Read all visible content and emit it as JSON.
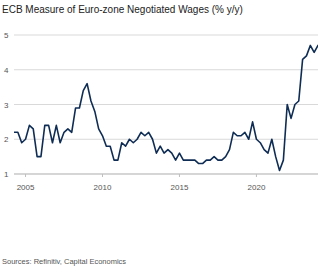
{
  "chart_data": {
    "type": "line",
    "title": "ECB Measure of Euro-zone Negotiated Wages (% y/y)",
    "source": "Sources: Refinitiv, Capital Economics",
    "x": [
      2004.25,
      2004.5,
      2004.75,
      2005,
      2005.25,
      2005.5,
      2005.75,
      2006,
      2006.25,
      2006.5,
      2006.75,
      2007,
      2007.25,
      2007.5,
      2007.75,
      2008,
      2008.25,
      2008.5,
      2008.75,
      2009,
      2009.25,
      2009.5,
      2009.75,
      2010,
      2010.25,
      2010.5,
      2010.75,
      2011,
      2011.25,
      2011.5,
      2011.75,
      2012,
      2012.25,
      2012.5,
      2012.75,
      2013,
      2013.25,
      2013.5,
      2013.75,
      2014,
      2014.25,
      2014.5,
      2014.75,
      2015,
      2015.25,
      2015.5,
      2015.75,
      2016,
      2016.25,
      2016.5,
      2016.75,
      2017,
      2017.25,
      2017.5,
      2017.75,
      2018,
      2018.25,
      2018.5,
      2018.75,
      2019,
      2019.25,
      2019.5,
      2019.75,
      2020,
      2020.25,
      2020.5,
      2020.75,
      2021,
      2021.25,
      2021.5,
      2021.75,
      2022,
      2022.25,
      2022.5,
      2022.75,
      2023,
      2023.25,
      2023.5,
      2023.75,
      2024
    ],
    "values": [
      2.2,
      2.2,
      1.9,
      2.0,
      2.4,
      2.3,
      1.5,
      1.5,
      2.4,
      2.4,
      1.9,
      2.4,
      1.9,
      2.2,
      2.3,
      2.2,
      2.9,
      2.9,
      3.4,
      3.6,
      3.1,
      2.8,
      2.3,
      2.1,
      1.8,
      1.8,
      1.4,
      1.4,
      1.9,
      1.8,
      2.0,
      1.9,
      2.0,
      2.2,
      2.1,
      2.2,
      2.0,
      1.6,
      1.8,
      1.6,
      1.7,
      1.6,
      1.4,
      1.6,
      1.4,
      1.4,
      1.4,
      1.4,
      1.3,
      1.3,
      1.4,
      1.4,
      1.5,
      1.4,
      1.4,
      1.5,
      1.7,
      2.2,
      2.1,
      2.1,
      2.2,
      2.0,
      2.5,
      2.0,
      1.9,
      1.7,
      1.6,
      2.0,
      1.5,
      1.1,
      1.4,
      3.0,
      2.6,
      3.0,
      3.1,
      4.3,
      4.4,
      4.7,
      4.5,
      4.7
    ],
    "color": "#0f2d54",
    "xlim": [
      2004.25,
      2024
    ],
    "xticks": [
      2005,
      2010,
      2015,
      2020
    ],
    "ylim": [
      1,
      5
    ],
    "yticks": [
      1,
      2,
      3,
      4,
      5
    ],
    "grid": true
  }
}
